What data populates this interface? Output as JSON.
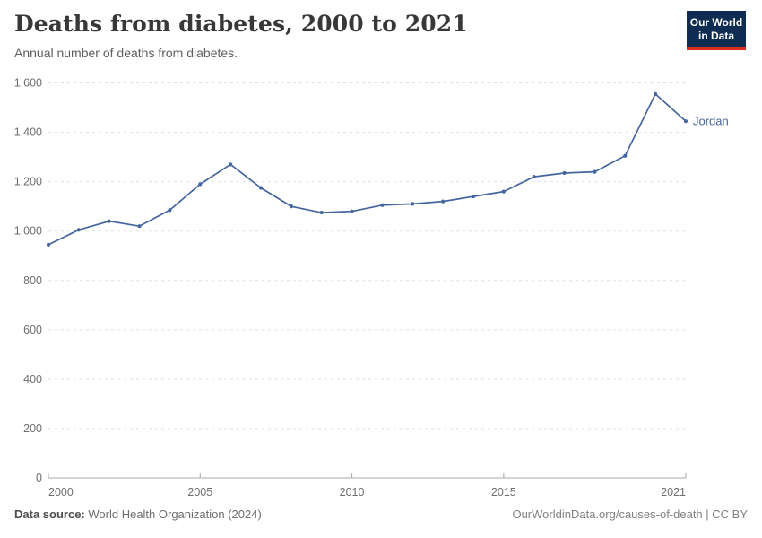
{
  "header": {
    "title": "Deaths from diabetes, 2000 to 2021",
    "subtitle": "Annual number of deaths from diabetes."
  },
  "logo": {
    "line1": "Our World",
    "line2": "in Data",
    "bg_color": "#0f2d52",
    "accent_color": "#dc2f1d"
  },
  "chart_data": {
    "type": "line",
    "title": "Deaths from diabetes, 2000 to 2021",
    "subtitle": "Annual number of deaths from diabetes.",
    "series": [
      {
        "name": "Jordan",
        "x": [
          2000,
          2001,
          2002,
          2003,
          2004,
          2005,
          2006,
          2007,
          2008,
          2009,
          2010,
          2011,
          2012,
          2013,
          2014,
          2015,
          2016,
          2017,
          2018,
          2019,
          2020,
          2021
        ],
        "values": [
          945,
          1005,
          1040,
          1020,
          1085,
          1190,
          1270,
          1175,
          1100,
          1075,
          1080,
          1105,
          1110,
          1120,
          1140,
          1160,
          1220,
          1235,
          1240,
          1305,
          1555,
          1445
        ]
      }
    ],
    "entity_label": "Jordan",
    "xlabel": "",
    "ylabel": "",
    "xlim": [
      2000,
      2021
    ],
    "ylim": [
      0,
      1600
    ],
    "ytick_step": 200,
    "ytick_labels": [
      "0",
      "200",
      "400",
      "600",
      "800",
      "1,000",
      "1,200",
      "1,400",
      "1,600"
    ],
    "xticks": [
      2000,
      2005,
      2010,
      2015,
      2021
    ],
    "grid": true,
    "legend_position": "end-of-line",
    "line_color": "#44659e",
    "grid_color": "#e0e0e0",
    "axis_color": "#a8a8a8",
    "tick_label_color": "#6e6e6e"
  },
  "footer": {
    "source_label": "Data source:",
    "source_value": "World Health Organization (2024)",
    "license": "OurWorldinData.org/causes-of-death | CC BY"
  }
}
